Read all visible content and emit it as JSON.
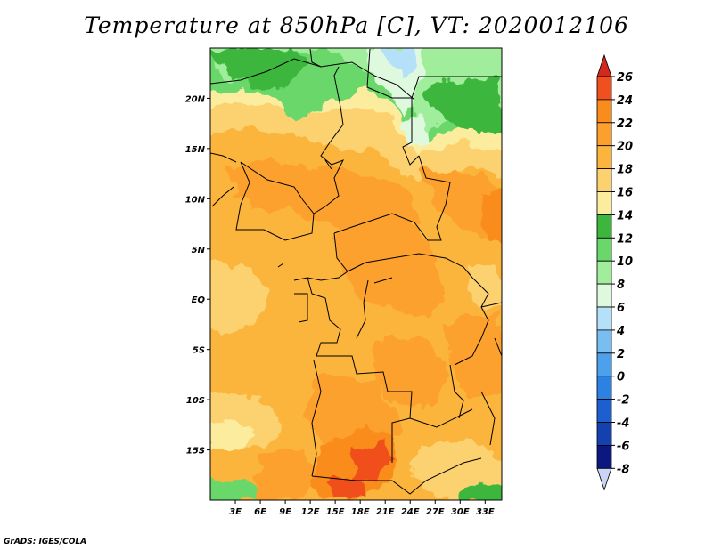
{
  "title": "Temperature at 850hPa [C], VT: 2020012106",
  "credit": "GrADS: IGES/COLA",
  "map": {
    "lon_range": [
      0,
      35
    ],
    "lat_range": [
      -20,
      25
    ],
    "lon_ticks": [
      {
        "value": 3,
        "label": "3E"
      },
      {
        "value": 6,
        "label": "6E"
      },
      {
        "value": 9,
        "label": "9E"
      },
      {
        "value": 12,
        "label": "12E"
      },
      {
        "value": 15,
        "label": "15E"
      },
      {
        "value": 18,
        "label": "18E"
      },
      {
        "value": 21,
        "label": "21E"
      },
      {
        "value": 24,
        "label": "24E"
      },
      {
        "value": 27,
        "label": "27E"
      },
      {
        "value": 30,
        "label": "30E"
      },
      {
        "value": 33,
        "label": "33E"
      }
    ],
    "lat_ticks": [
      {
        "value": 20,
        "label": "20N"
      },
      {
        "value": 15,
        "label": "15N"
      },
      {
        "value": 10,
        "label": "10N"
      },
      {
        "value": 5,
        "label": "5N"
      },
      {
        "value": 0,
        "label": "EQ"
      },
      {
        "value": -5,
        "label": "5S"
      },
      {
        "value": -10,
        "label": "10S"
      },
      {
        "value": -15,
        "label": "15S"
      }
    ]
  },
  "colorbar": {
    "levels": [
      26,
      24,
      22,
      20,
      18,
      16,
      14,
      12,
      10,
      8,
      6,
      4,
      2,
      0,
      -2,
      -4,
      -6,
      -8
    ],
    "labels": [
      "26",
      "24",
      "22",
      "20",
      "18",
      "16",
      "14",
      "12",
      "10",
      "8",
      "6",
      "4",
      "2",
      "0",
      "-2",
      "-4",
      "-6",
      "-8"
    ],
    "colors": [
      "#f0501e",
      "#fa8c1e",
      "#fca02d",
      "#fbb43c",
      "#fcd26f",
      "#fcec9e",
      "#3cb63c",
      "#6ad76a",
      "#a0ee9c",
      "#dff9df",
      "#b4e0fa",
      "#78bef0",
      "#4ca0ec",
      "#2c82e2",
      "#1e5fcf",
      "#1441b0",
      "#0c1880"
    ],
    "over_color": "#d2281e",
    "under_color": "#ccd4f5"
  }
}
